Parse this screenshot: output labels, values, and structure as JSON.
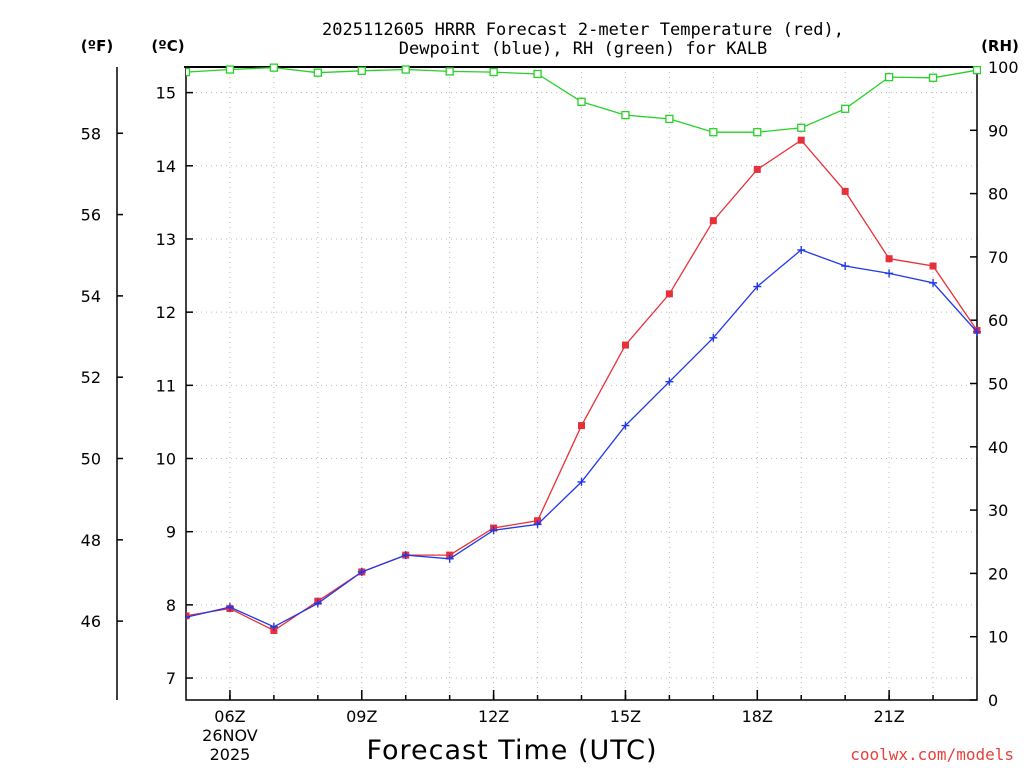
{
  "title_lines": [
    "2025112605 HRRR Forecast 2-meter Temperature (red),",
    "Dewpoint (blue), RH (green) for KALB"
  ],
  "units": {
    "fahrenheit": "(ºF)",
    "celsius": "(ºC)",
    "rh": "(RH)"
  },
  "credit": "coolwx.com/models",
  "colors": {
    "temperature": "#e8303a",
    "dewpoint": "#2038e8",
    "rh": "#28d028"
  },
  "chart_data": {
    "type": "line",
    "title": "2025112605 HRRR Forecast 2-meter Temperature (red), Dewpoint (blue), RH (green) for KALB",
    "xlabel": "Forecast Time (UTC)",
    "x": [
      "05Z",
      "06Z",
      "07Z",
      "08Z",
      "09Z",
      "10Z",
      "11Z",
      "12Z",
      "13Z",
      "14Z",
      "15Z",
      "16Z",
      "17Z",
      "18Z",
      "19Z",
      "20Z",
      "21Z",
      "22Z",
      "23Z"
    ],
    "x_range": [
      5,
      23
    ],
    "x_ticks": [
      {
        "hour": 6,
        "lines": [
          "06Z",
          "26NOV",
          "2025"
        ]
      },
      {
        "hour": 9,
        "lines": [
          "09Z"
        ]
      },
      {
        "hour": 12,
        "lines": [
          "12Z"
        ]
      },
      {
        "hour": 15,
        "lines": [
          "15Z"
        ]
      },
      {
        "hour": 18,
        "lines": [
          "18Z"
        ]
      },
      {
        "hour": 21,
        "lines": [
          "21Z"
        ]
      }
    ],
    "y_left_celsius": {
      "range": [
        6.7,
        15.35
      ],
      "ticks": [
        "7",
        "8",
        "9",
        "10",
        "11",
        "12",
        "13",
        "14",
        "15"
      ]
    },
    "y_left_fahrenheit": {
      "ticks": [
        "46",
        "48",
        "50",
        "52",
        "54",
        "56",
        "58"
      ]
    },
    "y_right_rh": {
      "range": [
        0,
        100
      ],
      "ticks": [
        "0",
        "10",
        "20",
        "30",
        "40",
        "50",
        "60",
        "70",
        "80",
        "90",
        "100"
      ]
    },
    "grid": true,
    "series": [
      {
        "name": "Temperature",
        "axis": "celsius",
        "marker": "filled-square",
        "values": [
          7.85,
          7.95,
          7.65,
          8.05,
          8.45,
          8.68,
          8.68,
          9.05,
          9.15,
          10.45,
          11.55,
          12.25,
          13.25,
          13.95,
          14.35,
          13.65,
          12.73,
          12.63,
          11.75
        ]
      },
      {
        "name": "Dewpoint",
        "axis": "celsius",
        "marker": "plus",
        "values": [
          7.83,
          7.97,
          7.7,
          8.02,
          8.45,
          8.68,
          8.63,
          9.02,
          9.1,
          9.68,
          10.45,
          11.05,
          11.65,
          12.35,
          12.85,
          12.63,
          12.53,
          12.4,
          11.73
        ]
      },
      {
        "name": "RH",
        "axis": "rh",
        "marker": "open-square",
        "values": [
          99.2,
          99.6,
          99.9,
          99.1,
          99.4,
          99.6,
          99.3,
          99.2,
          98.9,
          94.5,
          92.4,
          91.8,
          89.7,
          89.7,
          90.4,
          93.4,
          98.4,
          98.3,
          99.5
        ]
      }
    ]
  }
}
